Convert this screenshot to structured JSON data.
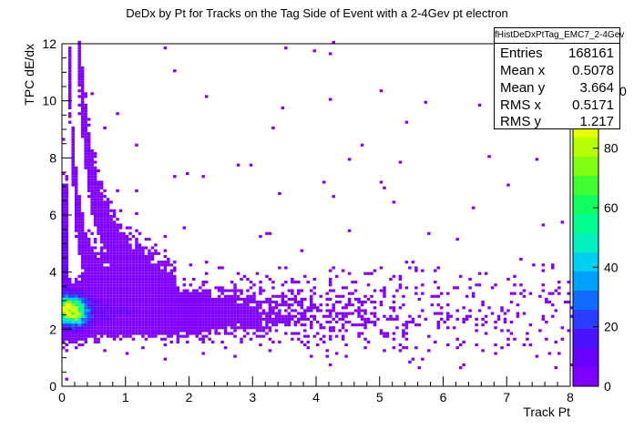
{
  "chart_data": {
    "type": "heatmap",
    "title": "DeDx by Pt for Tracks on the Tag Side of Event with a 2-4Gev pt electron",
    "xlabel": "Track Pt",
    "ylabel": "TPC dE/dx",
    "xlim": [
      0,
      8
    ],
    "ylim": [
      0,
      12
    ],
    "x_ticks": [
      "0",
      "1",
      "2",
      "3",
      "4",
      "5",
      "6",
      "7",
      "8"
    ],
    "y_ticks": [
      "0",
      "2",
      "4",
      "6",
      "8",
      "10",
      "12"
    ],
    "colorbar": {
      "range": [
        0,
        90
      ],
      "ticks": [
        "0",
        "20",
        "40",
        "60",
        "80"
      ],
      "partial_label": "0",
      "colors": [
        "#8000ff",
        "#6a00ff",
        "#4a12ff",
        "#2a3cff",
        "#0f6cff",
        "#00a0ff",
        "#00d0f0",
        "#00f0c0",
        "#00ff90",
        "#10ff60",
        "#40ff30",
        "#80ff10",
        "#b8ff00",
        "#e8ff00"
      ]
    },
    "stats": {
      "name": "fHistDeDxPtTag_EMC7_2-4Gev",
      "rows": [
        {
          "key": "Entries",
          "value": "168161"
        },
        {
          "key": "Mean x",
          "value": "0.5078"
        },
        {
          "key": "Mean y",
          "value": "3.664"
        },
        {
          "key": "RMS x",
          "value": "0.5171"
        },
        {
          "key": "RMS y",
          "value": "1.217"
        }
      ]
    },
    "density_features": [
      {
        "feature": "pion band",
        "x_range": [
          0.05,
          8
        ],
        "y_center": 2.6,
        "peak_count": 85,
        "peak_x": 0.15
      },
      {
        "feature": "kaon band",
        "x_range": [
          0.1,
          1.2
        ],
        "y_range": [
          3,
          10
        ]
      },
      {
        "feature": "proton band",
        "x_range": [
          0.25,
          1.8
        ],
        "y_range": [
          4,
          11
        ]
      }
    ]
  }
}
